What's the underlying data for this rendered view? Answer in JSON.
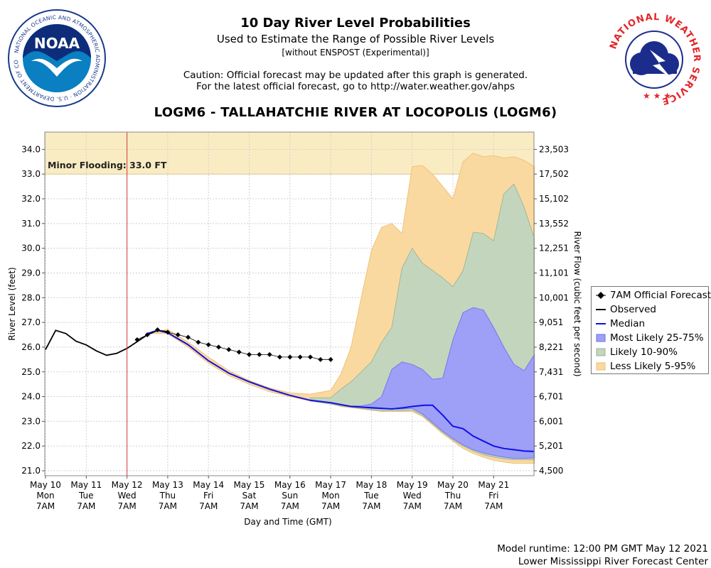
{
  "header": {
    "title": "10 Day River Level Probabilities",
    "subtitle": "Used to Estimate the Range of Possible River Levels",
    "subnote": "[without ENSPOST (Experimental)]",
    "caution_line1": "Caution: Official forecast may be updated after this graph is generated.",
    "caution_line2": "For the latest official forecast, go to http://water.weather.gov/ahps",
    "station": "LOGM6 - TALLAHATCHIE RIVER AT LOCOPOLIS (LOGM6)"
  },
  "logos": {
    "noaa_text": "NOAA",
    "noaa_ring": "NATIONAL OCEANIC AND ATMOSPHERIC ADMINISTRATION · U.S. DEPARTMENT OF COMMERCE",
    "nws_ring": "NATIONAL WEATHER SERVICE"
  },
  "footer": {
    "runtime": "Model runtime: 12:00 PM GMT May 12 2021",
    "center": "Lower Mississippi River Forecast Center"
  },
  "colors": {
    "flood_zone": "#faecc2",
    "less_likely": "#fad9a0",
    "likely": "#c3d6bd",
    "most_likely": "#9e9ff7",
    "median": "#1010e6",
    "observed": "#000000",
    "now_line": "#d43a3a",
    "grid": "#d0d0d0"
  },
  "chart_data": {
    "type": "area",
    "title": "10 Day River Level Probabilities",
    "xlabel": "Day and Time (GMT)",
    "ylabel": "River Level (feet)",
    "y2label": "River Flow (cubic feet per second)",
    "ylim": [
      20.8,
      34.7
    ],
    "xlim": [
      0,
      12
    ],
    "yticks": [
      21.0,
      22.0,
      23.0,
      24.0,
      25.0,
      26.0,
      27.0,
      28.0,
      29.0,
      30.0,
      31.0,
      32.0,
      33.0,
      34.0
    ],
    "ytick_labels": [
      "21.0",
      "22.0",
      "23.0",
      "24.0",
      "25.0",
      "26.0",
      "27.0",
      "28.0",
      "29.0",
      "30.0",
      "31.0",
      "32.0",
      "33.0",
      "34.0"
    ],
    "y2tick_labels": [
      "4,500",
      "5,201",
      "6,001",
      "6,701",
      "7,431",
      "8,221",
      "9,051",
      "10,001",
      "11,101",
      "12,251",
      "13,552",
      "15,102",
      "17,502",
      "23,503"
    ],
    "xticks": [
      {
        "day": 0,
        "l1": "May 10",
        "l2": "Mon",
        "l3": "7AM"
      },
      {
        "day": 1,
        "l1": "May 11",
        "l2": "Tue",
        "l3": "7AM"
      },
      {
        "day": 2,
        "l1": "May 12",
        "l2": "Wed",
        "l3": "7AM"
      },
      {
        "day": 3,
        "l1": "May 13",
        "l2": "Thu",
        "l3": "7AM"
      },
      {
        "day": 4,
        "l1": "May 14",
        "l2": "Fri",
        "l3": "7AM"
      },
      {
        "day": 5,
        "l1": "May 15",
        "l2": "Sat",
        "l3": "7AM"
      },
      {
        "day": 6,
        "l1": "May 16",
        "l2": "Sun",
        "l3": "7AM"
      },
      {
        "day": 7,
        "l1": "May 17",
        "l2": "Mon",
        "l3": "7AM"
      },
      {
        "day": 8,
        "l1": "May 18",
        "l2": "Tue",
        "l3": "7AM"
      },
      {
        "day": 9,
        "l1": "May 19",
        "l2": "Wed",
        "l3": "7AM"
      },
      {
        "day": 10,
        "l1": "May 20",
        "l2": "Thu",
        "l3": "7AM"
      },
      {
        "day": 11,
        "l1": "May 21",
        "l2": "Fri",
        "l3": "7AM"
      }
    ],
    "now_marker_day": 2,
    "flood_stage": {
      "label": "Minor Flooding: 33.0 FT",
      "value": 33.0
    },
    "legend": [
      {
        "key": "official",
        "label": "7AM Official Forecast"
      },
      {
        "key": "observed",
        "label": "Observed"
      },
      {
        "key": "median",
        "label": "Median"
      },
      {
        "key": "most_likely",
        "label": "Most Likely 25-75%"
      },
      {
        "key": "likely",
        "label": "Likely 10-90%"
      },
      {
        "key": "less_likely",
        "label": "Less Likely 5-95%"
      }
    ],
    "series": [
      {
        "name": "Observed",
        "x": [
          0,
          0.25,
          0.5,
          0.75,
          1.0,
          1.25,
          1.5,
          1.75,
          2.0,
          2.25,
          2.5,
          2.75,
          3.0
        ],
        "y": [
          25.9,
          26.68,
          26.55,
          26.24,
          26.09,
          25.85,
          25.67,
          25.75,
          25.95,
          26.22,
          26.5,
          26.68,
          26.62
        ]
      },
      {
        "name": "7AM Official Forecast",
        "x": [
          2.25,
          2.5,
          2.75,
          3.0,
          3.25,
          3.5,
          3.75,
          4.0,
          4.25,
          4.5,
          4.75,
          5.0,
          5.25,
          5.5,
          5.75,
          6.0,
          6.25,
          6.5,
          6.75,
          7.0
        ],
        "y": [
          26.3,
          26.5,
          26.7,
          26.6,
          26.5,
          26.4,
          26.2,
          26.1,
          26.0,
          25.9,
          25.8,
          25.7,
          25.7,
          25.7,
          25.6,
          25.6,
          25.6,
          25.6,
          25.5,
          25.5
        ]
      },
      {
        "name": "Median",
        "x": [
          2.5,
          2.75,
          3.0,
          3.5,
          4.0,
          4.5,
          5.0,
          5.5,
          6.0,
          6.5,
          7.0,
          7.5,
          8.0,
          8.5,
          8.8,
          9.0,
          9.3,
          9.5,
          9.75,
          10.0,
          10.25,
          10.5,
          10.75,
          11.0,
          11.25,
          11.5,
          11.75,
          12.0
        ],
        "y": [
          26.55,
          26.68,
          26.58,
          26.1,
          25.45,
          24.95,
          24.6,
          24.3,
          24.05,
          23.85,
          23.75,
          23.6,
          23.55,
          23.5,
          23.55,
          23.6,
          23.65,
          23.65,
          23.25,
          22.8,
          22.7,
          22.4,
          22.2,
          22.0,
          21.9,
          21.85,
          21.8,
          21.78
        ]
      },
      {
        "name": "Less Likely 5-95%",
        "x": [
          2.5,
          3.0,
          3.5,
          4.0,
          4.5,
          5.0,
          5.5,
          6.0,
          6.5,
          7.0,
          7.25,
          7.5,
          7.75,
          8.0,
          8.25,
          8.5,
          8.75,
          9.0,
          9.25,
          9.5,
          9.75,
          10.0,
          10.25,
          10.5,
          10.75,
          11.0,
          11.25,
          11.5,
          11.75,
          12.0
        ],
        "upper": [
          26.55,
          26.72,
          26.2,
          25.6,
          25.05,
          24.65,
          24.35,
          24.15,
          24.1,
          24.25,
          24.9,
          26.0,
          28.0,
          29.9,
          30.85,
          31.0,
          30.6,
          33.3,
          33.35,
          33.0,
          32.5,
          32.0,
          33.5,
          33.85,
          33.7,
          33.75,
          33.65,
          33.7,
          33.55,
          33.3
        ],
        "lower": [
          26.55,
          26.55,
          26.0,
          25.35,
          24.85,
          24.5,
          24.2,
          24.0,
          23.82,
          23.7,
          23.6,
          23.55,
          23.5,
          23.45,
          23.4,
          23.4,
          23.4,
          23.4,
          23.2,
          22.85,
          22.5,
          22.2,
          21.9,
          21.7,
          21.55,
          21.42,
          21.35,
          21.3,
          21.3,
          21.3
        ]
      },
      {
        "name": "Likely 10-90%",
        "x": [
          6.5,
          7.0,
          7.25,
          7.5,
          7.75,
          8.0,
          8.25,
          8.5,
          8.75,
          9.0,
          9.25,
          9.5,
          9.75,
          10.0,
          10.25,
          10.5,
          10.75,
          11.0,
          11.25,
          11.5,
          11.75,
          12.0
        ],
        "upper": [
          23.95,
          23.95,
          24.3,
          24.6,
          25.0,
          25.4,
          26.2,
          26.8,
          29.2,
          30.0,
          29.4,
          29.1,
          28.8,
          28.45,
          29.1,
          30.65,
          30.6,
          30.3,
          32.2,
          32.6,
          31.65,
          30.4
        ],
        "lower": [
          23.82,
          23.7,
          23.62,
          23.58,
          23.52,
          23.47,
          23.43,
          23.43,
          23.43,
          23.45,
          23.25,
          22.9,
          22.55,
          22.25,
          22.0,
          21.8,
          21.65,
          21.55,
          21.48,
          21.45,
          21.45,
          21.45
        ]
      },
      {
        "name": "Most Likely 25-75%",
        "x": [
          7.5,
          7.75,
          8.0,
          8.25,
          8.5,
          8.75,
          9.0,
          9.25,
          9.5,
          9.75,
          10.0,
          10.25,
          10.5,
          10.75,
          11.0,
          11.25,
          11.5,
          11.75,
          12.0
        ],
        "upper": [
          23.62,
          23.62,
          23.7,
          24.0,
          25.1,
          25.4,
          25.3,
          25.1,
          24.7,
          24.75,
          26.3,
          27.4,
          27.6,
          27.5,
          26.8,
          26.0,
          25.3,
          25.05,
          25.7
        ],
        "lower": [
          23.6,
          23.56,
          23.52,
          23.5,
          23.5,
          23.5,
          23.52,
          23.3,
          22.95,
          22.6,
          22.3,
          22.05,
          21.85,
          21.72,
          21.62,
          21.55,
          21.5,
          21.5,
          21.52
        ]
      }
    ]
  }
}
